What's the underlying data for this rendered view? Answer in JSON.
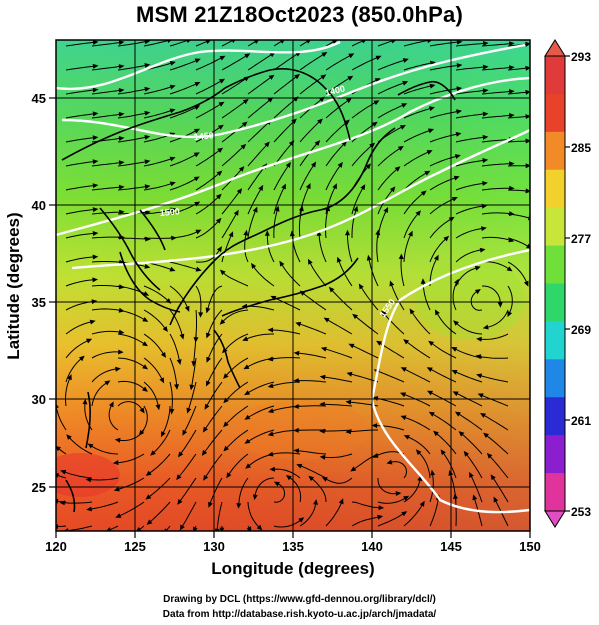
{
  "title": "MSM 21Z18Oct2023 (850.0hPa)",
  "axes": {
    "xlabel": "Longitude (degrees)",
    "ylabel": "Latitude  (degrees)",
    "x_ticks": [
      "120",
      "125",
      "130",
      "135",
      "140",
      "145",
      "150"
    ],
    "y_ticks": [
      "25",
      "30",
      "35",
      "40",
      "45"
    ],
    "xlim": [
      120,
      150
    ],
    "ylim": [
      22.4,
      47.6
    ]
  },
  "colorbar": {
    "labels": [
      "293",
      "285",
      "277",
      "269",
      "261",
      "253"
    ],
    "min": 253,
    "max": 293,
    "colors": [
      "#e0339b",
      "#8b1fd0",
      "#2b2bd6",
      "#1f87e6",
      "#22d4cf",
      "#2fd66a",
      "#6fe03a",
      "#c8e63a",
      "#f2d12c",
      "#f28a28",
      "#e8422a",
      "#e03a3a"
    ]
  },
  "contours": {
    "labels": [
      "1400",
      "1450",
      "1500",
      "1550"
    ],
    "color": "#ffffff"
  },
  "credits": {
    "line1": "Drawing by DCL (https://www.gfd-dennou.org/library/dcl/)",
    "line2": "Data from http://database.rish.kyoto-u.ac.jp/arch/jmadata/"
  }
}
